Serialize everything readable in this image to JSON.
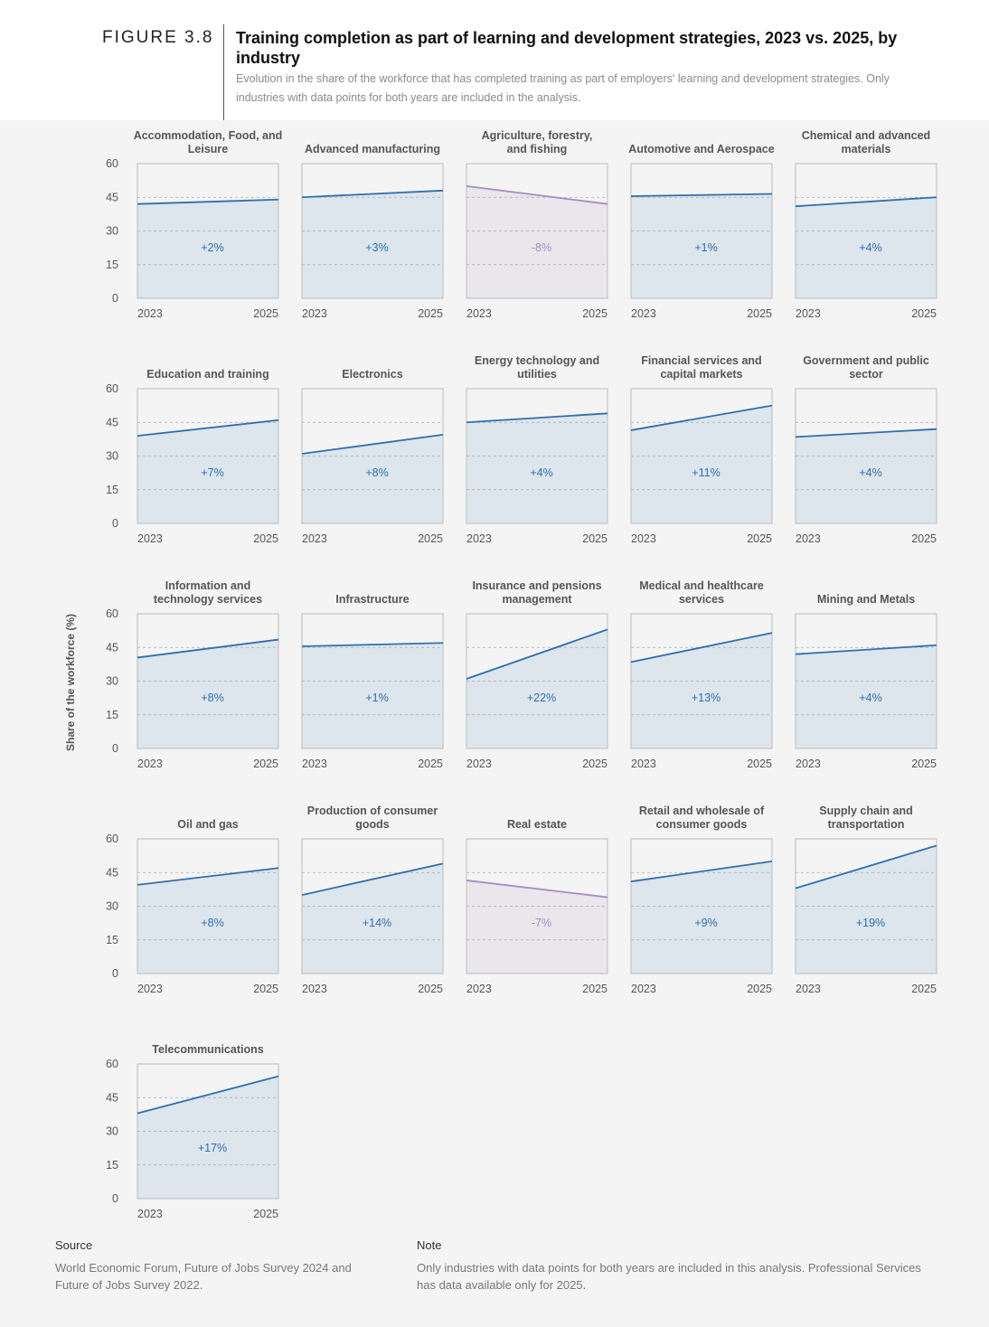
{
  "figure": {
    "label": "FIGURE 3.8",
    "title": "Training completion as part of learning and development strategies, 2023 vs. 2025, by industry",
    "subtitle": "Evolution in the share of the workforce that has completed training as part of employers' learning and development strategies. Only industries with data points for both years are included in the analysis."
  },
  "colors": {
    "increase_line": "#2f6fad",
    "increase_fill": "#dde5ed",
    "increase_text": "#2f6fad",
    "decrease_line": "#a58cc0",
    "decrease_fill": "#e9e6ec",
    "decrease_text": "#a58cc0",
    "frame": "#bdbdbd",
    "grid": "#aaaaaa"
  },
  "chart_data": {
    "type": "line",
    "title": "Training completion as part of learning and development strategies, 2023 vs. 2025, by industry",
    "ylabel": "Share of the workforce (%)",
    "xlabel": "",
    "ylim": [
      0,
      60
    ],
    "yticks": [
      0,
      15,
      30,
      45,
      60
    ],
    "x": [
      "2023",
      "2025"
    ],
    "grid": true,
    "panels": [
      {
        "title": "Accommodation, Food, and Leisure",
        "values": [
          42,
          44
        ],
        "change": "+2%"
      },
      {
        "title": "Advanced manufacturing",
        "values": [
          45,
          48
        ],
        "change": "+3%"
      },
      {
        "title": "Agriculture, forestry, and fishing",
        "values": [
          50,
          42
        ],
        "change": "-8%"
      },
      {
        "title": "Automotive and Aerospace",
        "values": [
          45.5,
          46.5
        ],
        "change": "+1%"
      },
      {
        "title": "Chemical and advanced materials",
        "values": [
          41,
          45
        ],
        "change": "+4%"
      },
      {
        "title": "Education and training",
        "values": [
          39,
          46
        ],
        "change": "+7%"
      },
      {
        "title": "Electronics",
        "values": [
          31,
          39.5
        ],
        "change": "+8%"
      },
      {
        "title": "Energy technology and utilities",
        "values": [
          45,
          49
        ],
        "change": "+4%"
      },
      {
        "title": "Financial services and capital markets",
        "values": [
          41.5,
          52.5
        ],
        "change": "+11%"
      },
      {
        "title": "Government and public sector",
        "values": [
          38.5,
          42
        ],
        "change": "+4%"
      },
      {
        "title": "Information and technology services",
        "values": [
          40.5,
          48.5
        ],
        "change": "+8%"
      },
      {
        "title": "Infrastructure",
        "values": [
          45.5,
          47
        ],
        "change": "+1%"
      },
      {
        "title": "Insurance and pensions management",
        "values": [
          31,
          53
        ],
        "change": "+22%"
      },
      {
        "title": "Medical and healthcare services",
        "values": [
          38.5,
          51.5
        ],
        "change": "+13%"
      },
      {
        "title": "Mining and Metals",
        "values": [
          42,
          46
        ],
        "change": "+4%"
      },
      {
        "title": "Oil and gas",
        "values": [
          39.5,
          47
        ],
        "change": "+8%"
      },
      {
        "title": "Production of consumer goods",
        "values": [
          35,
          49
        ],
        "change": "+14%"
      },
      {
        "title": "Real estate",
        "values": [
          41.5,
          34
        ],
        "change": "-7%"
      },
      {
        "title": "Retail and wholesale of consumer goods",
        "values": [
          41,
          50
        ],
        "change": "+9%"
      },
      {
        "title": "Supply chain and transportation",
        "values": [
          38,
          57
        ],
        "change": "+19%"
      },
      {
        "title": "Telecommunications",
        "values": [
          38,
          54.5
        ],
        "change": "+17%"
      }
    ]
  },
  "footer": {
    "source_heading": "Source",
    "source_text": "World Economic Forum, Future of Jobs Survey 2024 and Future of Jobs Survey 2022.",
    "note_heading": "Note",
    "note_text": "Only industries with data points for both years are included in this analysis. Professional Services has data available only for 2025."
  }
}
